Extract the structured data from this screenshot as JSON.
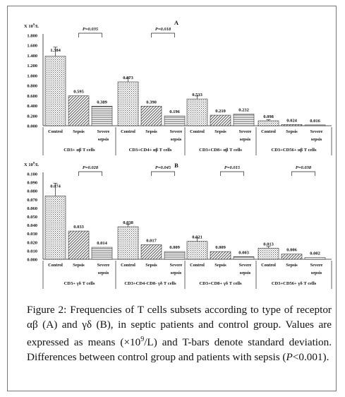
{
  "panels": [
    {
      "letter": "A",
      "unit_prefix": "X 10",
      "unit_exp": "9",
      "unit_suffix": "/L",
      "ylim": [
        0,
        1.8
      ],
      "yticks": [
        "0.000",
        "0.200",
        "0.400",
        "0.600",
        "0.800",
        "1.000",
        "1.200",
        "1.400",
        "1.600",
        "1.800"
      ],
      "groups": [
        {
          "label": "CD3+ αβ T cells",
          "p_value": "P=0.035",
          "bracket": [
            1,
            2
          ]
        },
        {
          "label": "CD3+CD4+ αβ T cells",
          "p_value": "P=0.018",
          "bracket": [
            1,
            2
          ]
        },
        {
          "label": "CD3+CD8+ αβ T cells",
          "p_value": "",
          "bracket": null
        },
        {
          "label": "CD3+CD56+ αβ T cells",
          "p_value": "",
          "bracket": null
        }
      ]
    },
    {
      "letter": "B",
      "unit_prefix": "X 10",
      "unit_exp": "9",
      "unit_suffix": "/L",
      "ylim": [
        0,
        0.1
      ],
      "yticks": [
        "0.000",
        "0.010",
        "0.020",
        "0.030",
        "0.040",
        "0.050",
        "0.060",
        "0.070",
        "0.080",
        "0.090",
        "0.100"
      ],
      "groups": [
        {
          "label": "CD3+ γδ T cells",
          "p_value": "P=0.028",
          "bracket": [
            1,
            2
          ]
        },
        {
          "label": "CD3+CD4-CD8- γδ T cells",
          "p_value": "P=0.045",
          "bracket": [
            1,
            2
          ]
        },
        {
          "label": "CD3+CD8+ γδ T cells",
          "p_value": "P=0.015",
          "bracket": [
            1,
            2
          ]
        },
        {
          "label": "CD3+CD56+ γδ T cells",
          "p_value": "P=0.038",
          "bracket": [
            1,
            2
          ]
        }
      ]
    }
  ],
  "bar_category_labels": [
    "Control",
    "Sepsis",
    "Severe sepsis"
  ],
  "chart_data": [
    {
      "type": "bar",
      "title": "",
      "xlabel": "",
      "ylabel": "X 10^9/L",
      "ylim": [
        0,
        1.8
      ],
      "categories": [
        "CD3+ αβ T cells",
        "CD3+CD4+ αβ T cells",
        "CD3+CD8+ αβ T cells",
        "CD3+CD56+ αβ T cells"
      ],
      "series": [
        {
          "name": "Control",
          "values": [
            1.384,
            0.873,
            0.533,
            0.098
          ],
          "error": [
            0.18,
            0.08,
            0.06,
            0.02
          ],
          "labels": [
            "1.384",
            "0.873",
            "0.533",
            "0.098"
          ]
        },
        {
          "name": "Sepsis",
          "values": [
            0.595,
            0.39,
            0.21,
            0.024
          ],
          "error": [
            0.0,
            0.0,
            0.0,
            0.0
          ],
          "labels": [
            "0.595",
            "0.390",
            "0.210",
            "0.024"
          ]
        },
        {
          "name": "Severe sepsis",
          "values": [
            0.389,
            0.196,
            0.232,
            0.016
          ],
          "error": [
            0.0,
            0.0,
            0.0,
            0.0
          ],
          "labels": [
            "0.389",
            "0.196",
            "0.232",
            "0.016"
          ]
        }
      ]
    },
    {
      "type": "bar",
      "title": "",
      "xlabel": "",
      "ylabel": "X 10^9/L",
      "ylim": [
        0,
        0.1
      ],
      "categories": [
        "CD3+ γδ T cells",
        "CD3+CD4-CD8- γδ T cells",
        "CD3+CD8+ γδ T cells",
        "CD3+CD56+ γδ T cells"
      ],
      "series": [
        {
          "name": "Control",
          "values": [
            0.074,
            0.038,
            0.021,
            0.013
          ],
          "error": [
            0.015,
            0.003,
            0.004,
            0.002
          ],
          "labels": [
            "0.074",
            "0.038",
            "0.021",
            "0.013"
          ]
        },
        {
          "name": "Sepsis",
          "values": [
            0.033,
            0.017,
            0.009,
            0.006
          ],
          "error": [
            0.0,
            0.0,
            0.0,
            0.0
          ],
          "labels": [
            "0.033",
            "0.017",
            "0.009",
            "0.006"
          ]
        },
        {
          "name": "Severe sepsis",
          "values": [
            0.014,
            0.009,
            0.003,
            0.002
          ],
          "error": [
            0.0,
            0.0,
            0.0,
            0.0
          ],
          "labels": [
            "0.014",
            "0.009",
            "0.003",
            "0.002"
          ]
        }
      ]
    }
  ],
  "caption": {
    "prefix": "Figure 2: Frequencies of T cells subsets according to type of receptor αβ (A) and γδ (B), in septic patients and control group. Values are expressed as means (×10",
    "exp": "9",
    "mid": "/L) and T-bars denote standard deviation. Differences between control group and patients with sepsis (",
    "p_italic": "P",
    "suffix": "<0.001)."
  }
}
